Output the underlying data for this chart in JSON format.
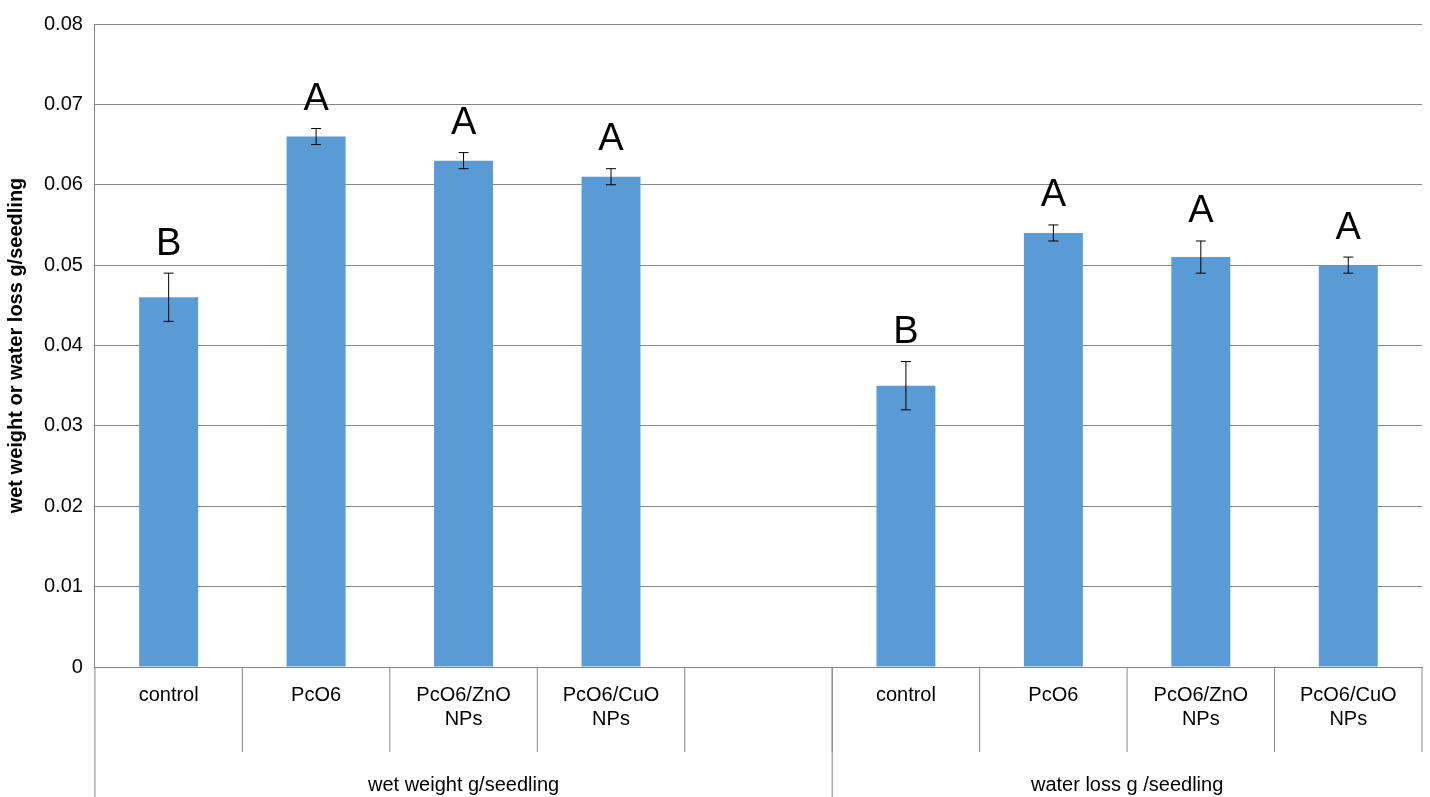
{
  "chart_data": {
    "type": "bar",
    "ylabel": "wet weight or water loss g/seedling",
    "categories": [
      "control",
      "PcO6",
      "PcO6/ZnO NPs",
      "PcO6/CuO NPs",
      null,
      "control",
      "PcO6",
      "PcO6/ZnO NPs",
      "PcO6/CuO NPs"
    ],
    "values": [
      0.046,
      0.066,
      0.063,
      0.061,
      null,
      0.035,
      0.054,
      0.051,
      0.05
    ],
    "errors": [
      0.003,
      0.001,
      0.001,
      0.001,
      null,
      0.003,
      0.001,
      0.002,
      0.001
    ],
    "value_labels": [
      "B",
      "A",
      "A",
      "A",
      null,
      "B",
      "A",
      "A",
      "A"
    ],
    "color": "#5b9bd5",
    "ylim": [
      0,
      0.08
    ],
    "yticks": [
      0,
      0.01,
      0.02,
      0.03,
      0.04,
      0.05,
      0.06,
      0.07,
      0.08
    ],
    "grid": "y",
    "legend": false,
    "annotations": [
      "wet weight g/seedling",
      "water loss g /seedling"
    ]
  }
}
